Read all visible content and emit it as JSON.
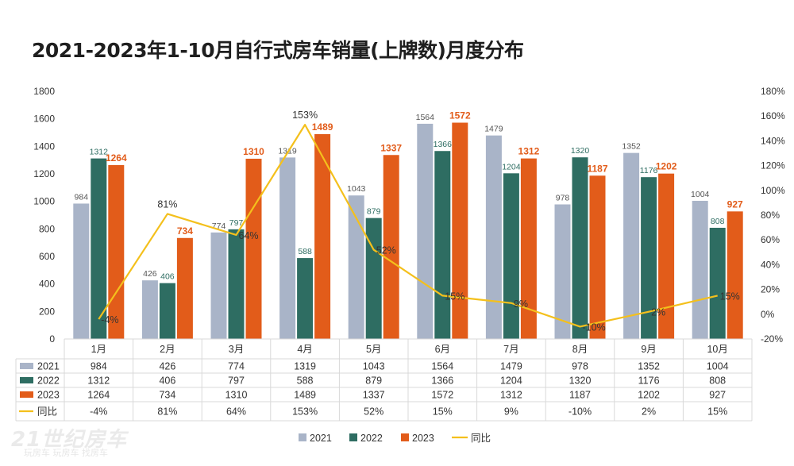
{
  "title": "2021-2023年1-10月自行式房车销量(上牌数)月度分布",
  "watermark": "21世纪房车",
  "watermark_sub": "玩房车 玩房车 找房车",
  "colors": {
    "2021": "#a9b4c8",
    "2022": "#2e6d62",
    "2023": "#e25c1a",
    "yoy": "#f4c01c",
    "grid": "#d9d9d9",
    "text": "#333333"
  },
  "chart_data": {
    "type": "bar",
    "categories": [
      "1月",
      "2月",
      "3月",
      "4月",
      "5月",
      "6月",
      "7月",
      "8月",
      "9月",
      "10月"
    ],
    "series": [
      {
        "name": "2021",
        "values": [
          984,
          426,
          774,
          1319,
          1043,
          1564,
          1479,
          978,
          1352,
          1004
        ]
      },
      {
        "name": "2022",
        "values": [
          1312,
          406,
          797,
          588,
          879,
          1366,
          1204,
          1320,
          1176,
          808
        ]
      },
      {
        "name": "2023",
        "values": [
          1264,
          734,
          1310,
          1489,
          1337,
          1572,
          1312,
          1187,
          1202,
          927
        ]
      }
    ],
    "line_series": {
      "name": "同比",
      "values": [
        -4,
        81,
        64,
        153,
        52,
        15,
        9,
        -10,
        2,
        15
      ]
    },
    "line_labels": [
      "-4%",
      "81%",
      "64%",
      "153%",
      "52%",
      "15%",
      "9%",
      "-10%",
      "2%",
      "15%"
    ],
    "ylim": [
      0,
      1800
    ],
    "y_ticks": [
      "0",
      "200",
      "400",
      "600",
      "800",
      "1000",
      "1200",
      "1400",
      "1600",
      "1800"
    ],
    "y2lim": [
      -20,
      180
    ],
    "y2_ticks": [
      "-20%",
      "0%",
      "20%",
      "40%",
      "60%",
      "80%",
      "100%",
      "120%",
      "140%",
      "160%",
      "180%"
    ],
    "legend": [
      "2021",
      "2022",
      "2023",
      "同比"
    ],
    "legend_position": "bottom",
    "data_table": true
  }
}
